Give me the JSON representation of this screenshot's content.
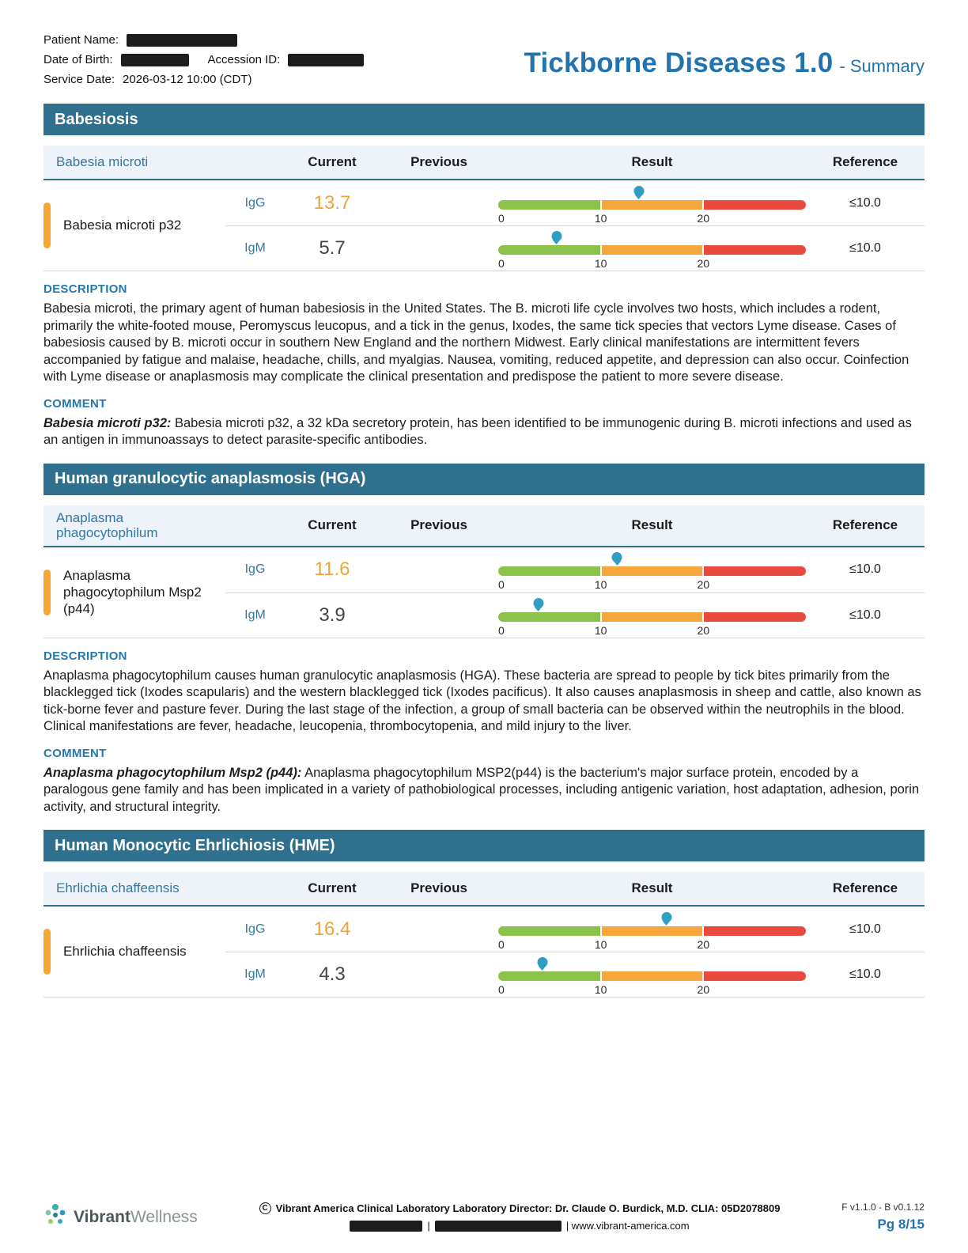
{
  "header": {
    "patient_name_label": "Patient Name:",
    "dob_label": "Date of Birth:",
    "accession_label": "Accession ID:",
    "service_date_label": "Service Date:",
    "service_date_value": "2026-03-12 10:00 (CDT)",
    "title": "Tickborne Diseases 1.0",
    "subtitle": "- Summary"
  },
  "table_columns": {
    "current": "Current",
    "previous": "Previous",
    "result": "Result",
    "reference": "Reference"
  },
  "gauge": {
    "min": 0,
    "max": 30,
    "ticks": [
      "0",
      "10",
      "20"
    ],
    "segment_colors": {
      "green": "#8bc34a",
      "orange": "#f6a63a",
      "red": "#e84a3f"
    },
    "marker_color": "#2f9ec2"
  },
  "accent_color": "#f5a733",
  "sections": [
    {
      "title": "Babesiosis",
      "panel": "Babesia microti",
      "test_name": "Babesia microti p32",
      "rows": [
        {
          "antibody": "IgG",
          "current": "13.7",
          "value": 13.7,
          "reference": "≤10.0",
          "flagged": true
        },
        {
          "antibody": "IgM",
          "current": "5.7",
          "value": 5.7,
          "reference": "≤10.0",
          "flagged": false
        }
      ],
      "description_label": "DESCRIPTION",
      "description": "Babesia microti, the primary agent of human babesiosis in the United States. The B. microti life cycle involves two hosts, which includes a rodent, primarily the white-footed mouse, Peromyscus leucopus, and a tick in the genus, Ixodes, the same tick species that vectors Lyme disease. Cases of babesiosis caused by B. microti occur in southern New England and the northern Midwest. Early clinical manifestations are intermittent fevers accompanied by fatigue and malaise, headache, chills, and myalgias. Nausea, vomiting, reduced appetite, and depression can also occur. Coinfection with Lyme disease or anaplasmosis may complicate the clinical presentation and predispose the patient to more severe disease.",
      "comment_label": "COMMENT",
      "comment_lead": "Babesia microti p32:",
      "comment_text": "Babesia microti p32, a 32 kDa secretory protein, has been identified to be immunogenic during B. microti infections and used as an antigen in immunoassays to detect parasite-specific antibodies."
    },
    {
      "title": "Human granulocytic anaplasmosis (HGA)",
      "panel": "Anaplasma phagocytophilum",
      "test_name": "Anaplasma phagocytophilum Msp2 (p44)",
      "rows": [
        {
          "antibody": "IgG",
          "current": "11.6",
          "value": 11.6,
          "reference": "≤10.0",
          "flagged": true
        },
        {
          "antibody": "IgM",
          "current": "3.9",
          "value": 3.9,
          "reference": "≤10.0",
          "flagged": false
        }
      ],
      "description_label": "DESCRIPTION",
      "description": "Anaplasma phagocytophilum causes human granulocytic anaplasmosis (HGA). These bacteria are spread to people by tick bites primarily from the blacklegged tick (Ixodes scapularis) and the western blacklegged tick (Ixodes pacificus). It also causes anaplasmosis in sheep and cattle, also known as tick-borne fever and pasture fever. During the last stage of the infection, a group of small bacteria can be observed within the neutrophils in the blood. Clinical manifestations are fever, headache, leucopenia, thrombocytopenia, and mild injury to the liver.",
      "comment_label": "COMMENT",
      "comment_lead": "Anaplasma phagocytophilum Msp2 (p44):",
      "comment_text": "Anaplasma phagocytophilum MSP2(p44) is the bacterium's major surface protein, encoded by a paralogous gene family and has been implicated in a variety of pathobiological processes, including antigenic variation, host adaptation, adhesion, porin activity, and structural integrity."
    },
    {
      "title": "Human Monocytic Ehrlichiosis (HME)",
      "panel": "Ehrlichia chaffeensis",
      "test_name": "Ehrlichia chaffeensis",
      "rows": [
        {
          "antibody": "IgG",
          "current": "16.4",
          "value": 16.4,
          "reference": "≤10.0",
          "flagged": true
        },
        {
          "antibody": "IgM",
          "current": "4.3",
          "value": 4.3,
          "reference": "≤10.0",
          "flagged": false
        }
      ]
    }
  ],
  "footer": {
    "brand_bold": "Vibrant",
    "brand_light": "Wellness",
    "copyright": "©",
    "lab_line": "Vibrant America Clinical Laboratory Laboratory Director: Dr. Claude O. Burdick, M.D. CLIA: 05D2078809",
    "divider": "|",
    "website": "| www.vibrant-america.com",
    "version": "F v1.1.0 - B v0.1.12",
    "page": "Pg 8/15"
  }
}
